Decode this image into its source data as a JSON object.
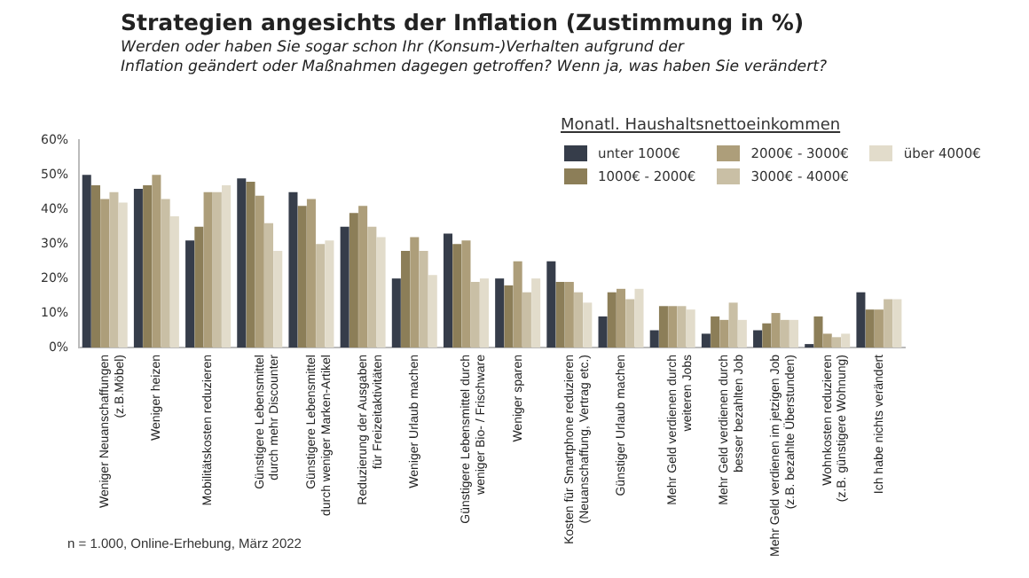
{
  "chart_data": {
    "type": "bar",
    "title": "Strategien angesichts der Inflation (Zustimmung in %)",
    "subtitle": "Werden oder haben Sie sogar schon Ihr (Konsum-)Verhalten aufgrund der\nInflation geändert oder Maßnahmen dagegen getroffen? Wenn ja, was haben Sie verändert?",
    "legend_title": "Monatl. Haushaltsnettoeinkommen",
    "categories": [
      "Weniger Neuanschaffungen\n(z.B.Möbel)",
      "Weniger heizen",
      "Mobilitätskosten reduzieren",
      "Günstigere Lebensmittel\ndurch mehr Discounter",
      "Günstigere Lebensmittel\ndurch weniger Marken-Artikel",
      "Reduzierung der Ausgaben\nfür Freizeitaktivitäten",
      "Weniger Urlaub machen",
      "Günstigere Lebensmittel durch\nweniger Bio- / Frischware",
      "Weniger sparen",
      "Kosten für Smartphone reduzieren\n(Neuanschaffung, Vertrag etc.)",
      "Günstiger Urlaub machen",
      "Mehr Geld verdienen durch\nweiteren Jobs",
      "Mehr Geld verdienen durch\nbesser bezahlten Job",
      "Mehr Geld verdienen im jetzigen Job\n(z.B. bezahlte Überstunden)",
      "Wohnkosten reduzieren\n(z.B. günstigere Wohnung)",
      "Ich habe nichts verändert"
    ],
    "series": [
      {
        "name": "unter 1000€",
        "color": "#363d4a",
        "values": [
          50,
          46,
          31,
          49,
          45,
          35,
          20,
          33,
          20,
          25,
          9,
          5,
          4,
          5,
          1,
          16
        ]
      },
      {
        "name": "1000€ - 2000€",
        "color": "#8c7e58",
        "values": [
          47,
          47,
          35,
          48,
          41,
          39,
          28,
          30,
          18,
          19,
          16,
          12,
          9,
          7,
          9,
          11
        ]
      },
      {
        "name": "2000€ - 3000€",
        "color": "#ad9e7a",
        "values": [
          43,
          50,
          45,
          44,
          43,
          41,
          32,
          31,
          25,
          19,
          17,
          12,
          8,
          10,
          4,
          11
        ]
      },
      {
        "name": "3000€ - 4000€",
        "color": "#c9bfa5",
        "values": [
          45,
          43,
          45,
          36,
          30,
          35,
          28,
          19,
          16,
          16,
          14,
          12,
          13,
          8,
          3,
          14
        ]
      },
      {
        "name": "über 4000€",
        "color": "#e2dccb",
        "values": [
          42,
          38,
          47,
          28,
          31,
          32,
          21,
          20,
          20,
          13,
          17,
          11,
          8,
          8,
          4,
          14
        ]
      }
    ],
    "ylim": [
      0,
      60
    ],
    "yticks": [
      {
        "value": 0,
        "label": "0%"
      },
      {
        "value": 10,
        "label": "10%"
      },
      {
        "value": 20,
        "label": "20%"
      },
      {
        "value": 30,
        "label": "30%"
      },
      {
        "value": 40,
        "label": "40%"
      },
      {
        "value": 50,
        "label": "50%"
      },
      {
        "value": 60,
        "label": "60%"
      }
    ],
    "grid": false,
    "legend": "top right",
    "annotations": [
      "n = 1.000, Online-Erhebung, März 2022"
    ]
  }
}
